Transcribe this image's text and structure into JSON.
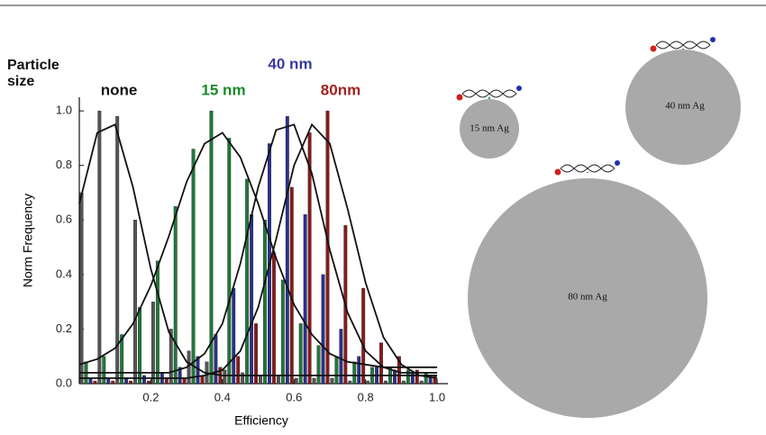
{
  "chart_data": {
    "type": "histogram",
    "x_label": "Efficiency",
    "y_label": "Norm Frequency",
    "legend_title": "Particle size",
    "bins": [
      0,
      0.05,
      0.1,
      0.15,
      0.2,
      0.25,
      0.3,
      0.35,
      0.4,
      0.45,
      0.5,
      0.55,
      0.6,
      0.65,
      0.7,
      0.75,
      0.8,
      0.85,
      0.9,
      0.95,
      1.0
    ],
    "fit_x": [
      0,
      0.05,
      0.1,
      0.15,
      0.2,
      0.25,
      0.3,
      0.35,
      0.4,
      0.45,
      0.5,
      0.55,
      0.6,
      0.65,
      0.7,
      0.75,
      0.8,
      0.85,
      0.9,
      0.95,
      1.0
    ],
    "series": [
      {
        "name": "none",
        "color": "#555555",
        "label_color": "#111111",
        "values": [
          0.7,
          1.0,
          0.98,
          0.6,
          0.3,
          0.2,
          0.12,
          0.08,
          0.05,
          0.04,
          0.03,
          0.03,
          0.02,
          0.02,
          0.02,
          0.01,
          0.01,
          0.01,
          0.01,
          0.01
        ],
        "fit": [
          0.66,
          0.92,
          0.95,
          0.72,
          0.42,
          0.19,
          0.08,
          0.04,
          0.03,
          0.03,
          0.03,
          0.03,
          0.03,
          0.03,
          0.03,
          0.03,
          0.03,
          0.03,
          0.03,
          0.03,
          0.03
        ]
      },
      {
        "name": "15 nm",
        "color": "#1e7a3a",
        "label_color": "#1a8a2a",
        "values": [
          0.08,
          0.1,
          0.18,
          0.28,
          0.45,
          0.65,
          0.86,
          1.0,
          0.9,
          0.75,
          0.6,
          0.38,
          0.22,
          0.14,
          0.1,
          0.08,
          0.06,
          0.06,
          0.05,
          0.04
        ],
        "fit": [
          0.07,
          0.09,
          0.13,
          0.22,
          0.36,
          0.54,
          0.74,
          0.88,
          0.92,
          0.83,
          0.66,
          0.46,
          0.29,
          0.18,
          0.11,
          0.08,
          0.07,
          0.06,
          0.06,
          0.06,
          0.06
        ]
      },
      {
        "name": "40 nm",
        "color": "#2b2f8f",
        "label_color": "#3a3aa0",
        "values": [
          0.02,
          0.02,
          0.02,
          0.03,
          0.04,
          0.06,
          0.1,
          0.18,
          0.35,
          0.62,
          0.88,
          0.98,
          0.62,
          0.4,
          0.2,
          0.1,
          0.06,
          0.05,
          0.04,
          0.03
        ],
        "fit": [
          0.04,
          0.04,
          0.04,
          0.04,
          0.04,
          0.04,
          0.06,
          0.11,
          0.22,
          0.44,
          0.72,
          0.93,
          0.95,
          0.77,
          0.49,
          0.26,
          0.12,
          0.06,
          0.04,
          0.04,
          0.04
        ]
      },
      {
        "name": "80nm",
        "color": "#8b1a1a",
        "label_color": "#a02020",
        "values": [
          0.01,
          0.01,
          0.01,
          0.01,
          0.02,
          0.02,
          0.03,
          0.06,
          0.1,
          0.22,
          0.48,
          0.72,
          0.92,
          1.0,
          0.58,
          0.35,
          0.15,
          0.1,
          0.05,
          0.03
        ],
        "fit": [
          0.02,
          0.02,
          0.02,
          0.02,
          0.02,
          0.02,
          0.02,
          0.03,
          0.05,
          0.12,
          0.28,
          0.53,
          0.8,
          0.95,
          0.88,
          0.64,
          0.37,
          0.17,
          0.07,
          0.03,
          0.02
        ]
      }
    ],
    "xlim": [
      0,
      1.03
    ],
    "ylim": [
      0,
      1.05
    ],
    "xticks": [
      0.2,
      0.4,
      0.6,
      0.8,
      {
        "value": 1,
        "label": "1.0"
      }
    ],
    "yticks": [
      {
        "value": 0,
        "label": "0.0"
      },
      0.2,
      0.4,
      0.6,
      0.8,
      {
        "value": 1,
        "label": "1.0"
      }
    ]
  },
  "diagram": {
    "particles": [
      {
        "label": "15 nm Ag"
      },
      {
        "label": "40 nm Ag"
      },
      {
        "label": "80 nm Ag"
      }
    ]
  }
}
